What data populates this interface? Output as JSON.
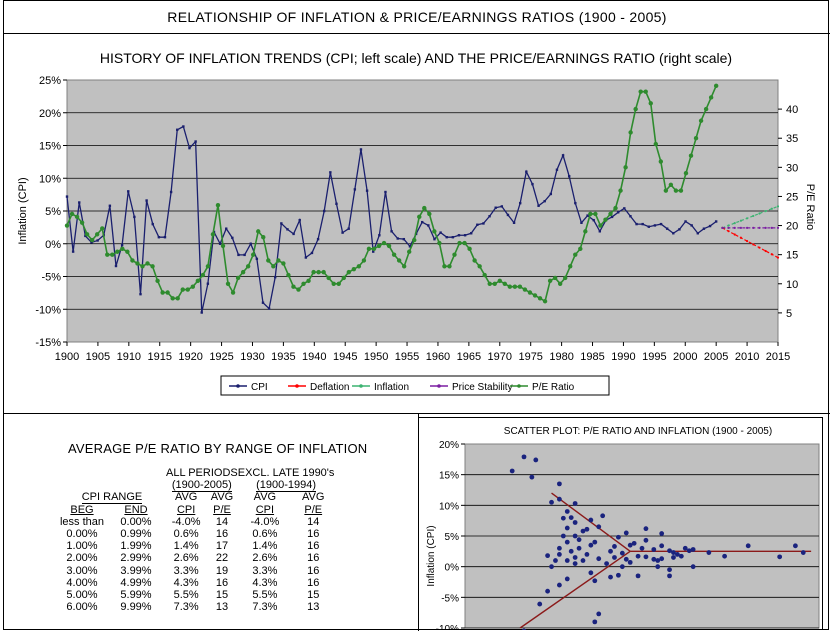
{
  "page_title": "RELATIONSHIP OF INFLATION & PRICE/EARNINGS RATIOS (1900 - 2005)",
  "colors": {
    "plot_bg": "#c0c0c0",
    "cpi": "#1a1f6e",
    "pe": "#2e8b2e",
    "deflation": "#ff0000",
    "inflation": "#3cb371",
    "price_stability": "#7b1fa2",
    "scatter_point": "#1a237e",
    "scatter_line": "#8b1a1a"
  },
  "chart_data": [
    {
      "type": "line",
      "title": "HISTORY OF INFLATION TRENDS (CPI; left scale) AND THE PRICE/EARNINGS RATIO (right scale)",
      "ylabel": "Inflation (CPI)",
      "y2label": "P/E Ratio",
      "xlim": [
        1900,
        2015
      ],
      "ylim": [
        -15,
        25
      ],
      "y2lim": [
        0,
        45
      ],
      "x_ticks": [
        "1900",
        "1905",
        "1910",
        "1915",
        "1920",
        "1925",
        "1930",
        "1935",
        "1940",
        "1945",
        "1950",
        "1955",
        "1960",
        "1965",
        "1970",
        "1975",
        "1980",
        "1985",
        "1990",
        "1995",
        "2000",
        "2005",
        "2010",
        "2015"
      ],
      "y_ticks": [
        "25%",
        "20%",
        "15%",
        "10%",
        "5%",
        "0%",
        "-5%",
        "-10%",
        "-15%"
      ],
      "y2_ticks": [
        "40",
        "35",
        "30",
        "25",
        "20",
        "15",
        "10",
        "5"
      ],
      "legend": [
        "CPI",
        "Deflation",
        "Inflation",
        "Price Stability",
        "P/E Ratio"
      ],
      "grid": true,
      "series": {
        "cpi": {
          "name": "CPI",
          "x_start": 1900,
          "values": [
            7.2,
            -1.2,
            6.3,
            1.2,
            0.2,
            0.5,
            1.3,
            5.8,
            -3.4,
            -0.2,
            8.0,
            4.1,
            -7.7,
            6.6,
            3.0,
            1.0,
            1.0,
            7.9,
            17.4,
            17.9,
            14.6,
            15.6,
            -10.5,
            -6.1,
            1.8,
            0,
            2.3,
            0.9,
            -1.7,
            -1.7,
            0,
            -2.3,
            -9.0,
            -9.9,
            -5.1,
            3.1,
            2.2,
            1.5,
            3.6,
            -2.1,
            -1.4,
            0.7,
            5.0,
            10.9,
            6.1,
            1.7,
            2.3,
            8.3,
            14.4,
            8.1,
            -1.2,
            1.3,
            7.9,
            1.9,
            0.8,
            0.7,
            -0.4,
            1.5,
            3.3,
            2.8,
            0.7,
            1.7,
            1.0,
            1.0,
            1.3,
            1.3,
            1.6,
            2.9,
            3.1,
            4.2,
            5.5,
            5.7,
            4.4,
            3.2,
            6.2,
            11.0,
            9.1,
            5.8,
            6.5,
            7.6,
            11.3,
            13.5,
            10.3,
            6.2,
            3.2,
            4.3,
            3.6,
            1.9,
            3.6,
            4.1,
            4.8,
            5.4,
            4.2,
            3.0,
            3.0,
            2.6,
            2.8,
            3.0,
            2.3,
            1.6,
            2.2,
            3.4,
            2.8,
            1.6,
            2.3,
            2.7,
            3.4
          ]
        },
        "pe": {
          "name": "P/E Ratio",
          "x_start": 1900,
          "values": [
            20,
            22,
            21.5,
            20.5,
            18.5,
            17.5,
            18.5,
            19.5,
            15,
            15,
            15.5,
            16,
            15.5,
            14,
            13.5,
            13,
            13.5,
            13,
            10.5,
            8.5,
            8.5,
            7.5,
            7.5,
            9,
            9,
            9.5,
            10.5,
            11.5,
            13,
            18.5,
            23.5,
            16.5,
            10,
            8.5,
            11,
            12,
            13,
            15,
            19,
            18,
            14,
            13,
            14,
            13.5,
            11.5,
            9.5,
            9,
            10,
            10.5,
            12,
            12,
            12,
            11,
            10,
            10,
            11,
            12,
            12.5,
            13,
            14,
            16,
            16,
            16.5,
            17,
            16.5,
            15,
            14,
            13,
            15.5,
            17.5,
            21.5,
            23,
            22,
            19,
            17,
            13,
            13,
            15,
            17,
            17,
            16,
            14,
            13,
            11.5,
            10,
            10,
            10.5,
            10,
            9.5,
            9.5,
            9.5,
            9,
            8.5,
            8,
            7.5,
            7,
            10.5,
            11,
            10,
            11,
            13,
            15,
            16,
            19,
            22,
            22,
            20,
            21,
            22,
            23,
            26,
            30,
            36,
            40,
            43,
            43,
            41,
            34,
            31,
            26,
            27,
            26,
            26,
            29,
            32,
            35,
            38,
            40,
            42,
            44
          ]
        }
      },
      "projections": {
        "start_year": 2006,
        "end_year": 2015,
        "deflation_end_pe": 14.5,
        "inflation_end_pe": 23.3,
        "price_stability_pe": 19.6
      }
    },
    {
      "type": "scatter",
      "title": "SCATTER PLOT: P/E RATIO AND INFLATION (1900 - 2005)",
      "ylabel": "Inflation (CPI)",
      "xlim": [
        0,
        45
      ],
      "ylim": [
        -10,
        20
      ],
      "y_ticks": [
        "20%",
        "15%",
        "10%",
        "5%",
        "0%",
        "-5%",
        "-10%"
      ],
      "points": [
        [
          6,
          15.6
        ],
        [
          7.5,
          17.9
        ],
        [
          8.5,
          14.6
        ],
        [
          9,
          17.4
        ],
        [
          7.5,
          -10.5
        ],
        [
          9.5,
          -6.1
        ],
        [
          10.5,
          1.8
        ],
        [
          11,
          0
        ],
        [
          12,
          -3
        ],
        [
          10.5,
          -4
        ],
        [
          13,
          -2
        ],
        [
          11,
          10.5
        ],
        [
          12,
          11
        ],
        [
          13,
          9
        ],
        [
          12.5,
          7.9
        ],
        [
          13.5,
          8
        ],
        [
          13,
          6.3
        ],
        [
          14,
          7.2
        ],
        [
          12.5,
          5
        ],
        [
          13,
          4
        ],
        [
          14,
          5
        ],
        [
          12,
          3
        ],
        [
          11.5,
          1
        ],
        [
          12,
          2
        ],
        [
          13.5,
          2.5
        ],
        [
          14.5,
          3
        ],
        [
          14,
          0.5
        ],
        [
          13,
          1
        ],
        [
          14,
          1.5
        ],
        [
          15,
          1
        ],
        [
          15.5,
          2
        ],
        [
          16,
          3.5
        ],
        [
          16.5,
          4
        ],
        [
          15,
          5.8
        ],
        [
          14.5,
          4.4
        ],
        [
          15.5,
          6.1
        ],
        [
          16,
          7.6
        ],
        [
          17,
          6.5
        ],
        [
          16,
          -1
        ],
        [
          17,
          -7.7
        ],
        [
          16.5,
          -9
        ],
        [
          16.5,
          -2.3
        ],
        [
          17,
          1.3
        ],
        [
          18,
          0.5
        ],
        [
          19,
          1.5
        ],
        [
          18.5,
          2.5
        ],
        [
          19,
          3.3
        ],
        [
          20,
          2.2
        ],
        [
          21,
          3.5
        ],
        [
          22,
          1.7
        ],
        [
          21,
          0.7
        ],
        [
          20,
          0
        ],
        [
          22,
          -1.5
        ],
        [
          23,
          1.6
        ],
        [
          24,
          1.2
        ],
        [
          22.5,
          3
        ],
        [
          24,
          2.8
        ],
        [
          25,
          3.4
        ],
        [
          26,
          2.6
        ],
        [
          26.5,
          2.3
        ],
        [
          25,
          1.3
        ],
        [
          26,
          -0.5
        ],
        [
          27,
          2
        ],
        [
          28,
          3
        ],
        [
          29,
          2.8
        ],
        [
          29,
          0
        ],
        [
          31,
          2.3
        ],
        [
          33,
          1.7
        ],
        [
          36,
          3.4
        ],
        [
          40,
          1.6
        ],
        [
          42,
          3.4
        ],
        [
          43,
          2.3
        ],
        [
          19.5,
          4.8
        ],
        [
          23,
          6.2
        ],
        [
          25,
          5.4
        ],
        [
          17.5,
          8.3
        ],
        [
          12,
          13.5
        ],
        [
          14,
          10.3
        ],
        [
          18.5,
          -1.7
        ],
        [
          19.5,
          -1.4
        ],
        [
          24.5,
          1
        ],
        [
          26,
          -1.5
        ],
        [
          20.5,
          1.2
        ],
        [
          21.5,
          3.8
        ],
        [
          23,
          4.3
        ],
        [
          20.5,
          5.5
        ],
        [
          27.5,
          1.7
        ],
        [
          28.5,
          2.6
        ],
        [
          24.5,
          0
        ],
        [
          26.5,
          1.5
        ]
      ],
      "trend_lines": [
        {
          "x": [
            11,
            21
          ],
          "y": [
            12,
            2.5
          ]
        },
        {
          "x": [
            21,
            44
          ],
          "y": [
            2.5,
            2.5
          ]
        },
        {
          "x": [
            7,
            21
          ],
          "y": [
            -10,
            2.5
          ]
        }
      ]
    }
  ],
  "avg_table": {
    "title": "AVERAGE P/E RATIO BY RANGE OF INFLATION",
    "group_all": "ALL PERIODS",
    "group_all_years": "(1900-2005)",
    "group_excl": "EXCL. LATE 1990's",
    "group_excl_years": "(1900-1994)",
    "cpi_range": "CPI RANGE",
    "h_beg": "BEG",
    "h_end": "END",
    "h_avg": "AVG",
    "h_cpi": "CPI",
    "h_pe": "P/E",
    "rows": [
      {
        "beg": "less than",
        "end": "0.00%",
        "cpi": "-4.0%",
        "pe": "14",
        "cpi2": "-4.0%",
        "pe2": "14"
      },
      {
        "beg": "0.00%",
        "end": "0.99%",
        "cpi": "0.6%",
        "pe": "16",
        "cpi2": "0.6%",
        "pe2": "16"
      },
      {
        "beg": "1.00%",
        "end": "1.99%",
        "cpi": "1.4%",
        "pe": "17",
        "cpi2": "1.4%",
        "pe2": "16"
      },
      {
        "beg": "2.00%",
        "end": "2.99%",
        "cpi": "2.6%",
        "pe": "22",
        "cpi2": "2.6%",
        "pe2": "16"
      },
      {
        "beg": "3.00%",
        "end": "3.99%",
        "cpi": "3.3%",
        "pe": "19",
        "cpi2": "3.3%",
        "pe2": "16"
      },
      {
        "beg": "4.00%",
        "end": "4.99%",
        "cpi": "4.3%",
        "pe": "16",
        "cpi2": "4.3%",
        "pe2": "16"
      },
      {
        "beg": "5.00%",
        "end": "5.99%",
        "cpi": "5.5%",
        "pe": "15",
        "cpi2": "5.5%",
        "pe2": "15"
      },
      {
        "beg": "6.00%",
        "end": "9.99%",
        "cpi": "7.3%",
        "pe": "13",
        "cpi2": "7.3%",
        "pe2": "13"
      }
    ]
  }
}
